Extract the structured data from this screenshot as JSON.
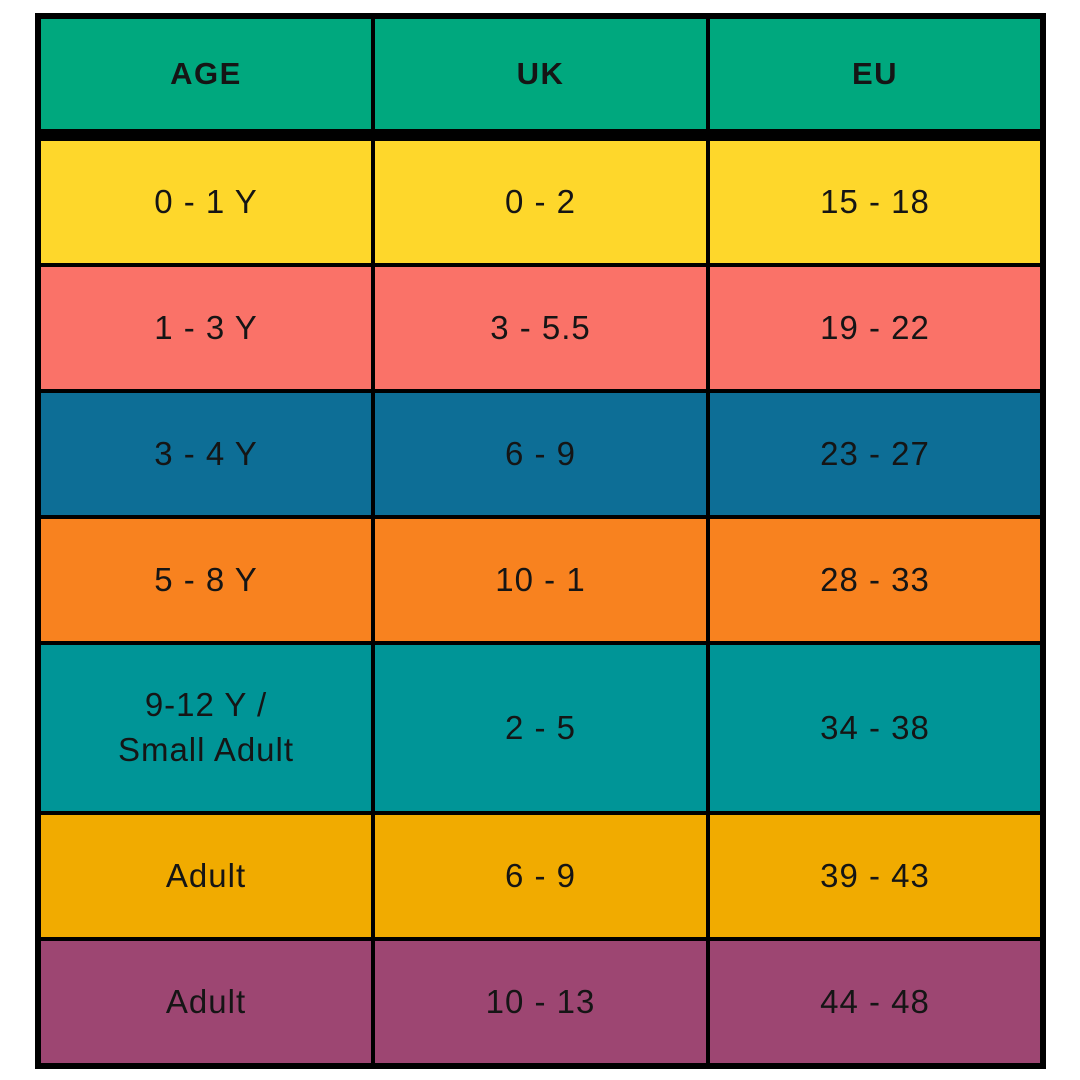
{
  "colors": {
    "background": "#FFFFFF",
    "border": "#000000",
    "text": "#151515",
    "header": "#00A87E"
  },
  "chart_data": {
    "type": "table",
    "columns": [
      "AGE",
      "UK",
      "EU"
    ],
    "rows": [
      {
        "age": "0 - 1 Y",
        "uk": "0 - 2",
        "eu": "15 - 18",
        "color": "#FED72B"
      },
      {
        "age": "1 - 3 Y",
        "uk": "3 - 5.5",
        "eu": "19 - 22",
        "color": "#FA7268"
      },
      {
        "age": "3 - 4 Y",
        "uk": "6 - 9",
        "eu": "23 - 27",
        "color": "#0D6E96"
      },
      {
        "age": "5 - 8 Y",
        "uk": "10 - 1",
        "eu": "28 - 33",
        "color": "#F8821F"
      },
      {
        "age": "9-12 Y /\nSmall Adult",
        "uk": "2 - 5",
        "eu": "34 - 38",
        "color": "#009597"
      },
      {
        "age": "Adult",
        "uk": "6 - 9",
        "eu": "39 - 43",
        "color": "#F1AB00"
      },
      {
        "age": "Adult",
        "uk": "10 - 13",
        "eu": "44 - 48",
        "color": "#9D4672"
      }
    ]
  }
}
